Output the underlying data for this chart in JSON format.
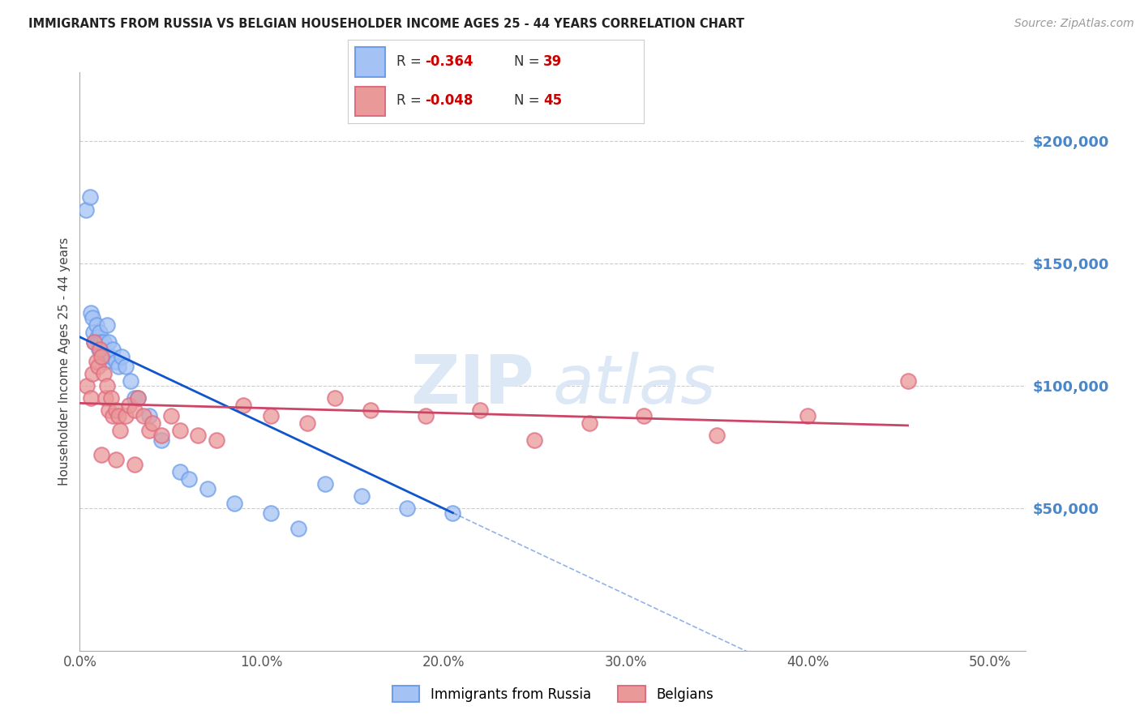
{
  "title": "IMMIGRANTS FROM RUSSIA VS BELGIAN HOUSEHOLDER INCOME AGES 25 - 44 YEARS CORRELATION CHART",
  "source": "Source: ZipAtlas.com",
  "xlabel_vals": [
    0.0,
    10.0,
    20.0,
    30.0,
    40.0,
    50.0
  ],
  "ylabel_vals": [
    200000,
    150000,
    100000,
    50000
  ],
  "xlim": [
    0.0,
    52.0
  ],
  "ylim": [
    -8000,
    228000
  ],
  "blue_scatter_face": "#a4c2f4",
  "blue_scatter_edge": "#6d9eeb",
  "pink_scatter_face": "#ea9999",
  "pink_scatter_edge": "#e06c80",
  "blue_line_color": "#1155cc",
  "pink_line_color": "#cc4466",
  "right_label_color": "#4a86c8",
  "grid_color": "#cccccc",
  "watermark_color": "#dce8f5",
  "russia_x": [
    0.35,
    0.55,
    0.6,
    0.7,
    0.75,
    0.8,
    0.9,
    0.95,
    1.0,
    1.05,
    1.1,
    1.15,
    1.2,
    1.25,
    1.3,
    1.4,
    1.5,
    1.6,
    1.7,
    1.8,
    2.0,
    2.1,
    2.3,
    2.5,
    2.8,
    3.0,
    3.2,
    3.8,
    4.5,
    5.5,
    6.0,
    7.0,
    8.5,
    10.5,
    12.0,
    13.5,
    15.5,
    18.0,
    20.5
  ],
  "russia_y": [
    172000,
    177000,
    130000,
    128000,
    122000,
    118000,
    125000,
    120000,
    118000,
    115000,
    122000,
    118000,
    115000,
    112000,
    118000,
    110000,
    125000,
    118000,
    112000,
    115000,
    110000,
    108000,
    112000,
    108000,
    102000,
    95000,
    95000,
    88000,
    78000,
    65000,
    62000,
    58000,
    52000,
    48000,
    42000,
    60000,
    55000,
    50000,
    48000
  ],
  "belgian_x": [
    0.4,
    0.6,
    0.7,
    0.8,
    0.9,
    1.0,
    1.1,
    1.2,
    1.3,
    1.4,
    1.5,
    1.6,
    1.7,
    1.8,
    2.0,
    2.1,
    2.2,
    2.5,
    2.7,
    3.0,
    3.2,
    3.5,
    3.8,
    4.0,
    4.5,
    5.0,
    5.5,
    6.5,
    7.5,
    9.0,
    10.5,
    12.5,
    14.0,
    16.0,
    19.0,
    22.0,
    25.0,
    28.0,
    31.0,
    35.0,
    40.0,
    45.5,
    1.2,
    2.0,
    3.0
  ],
  "belgian_y": [
    100000,
    95000,
    105000,
    118000,
    110000,
    108000,
    115000,
    112000,
    105000,
    95000,
    100000,
    90000,
    95000,
    88000,
    90000,
    88000,
    82000,
    88000,
    92000,
    90000,
    95000,
    88000,
    82000,
    85000,
    80000,
    88000,
    82000,
    80000,
    78000,
    92000,
    88000,
    85000,
    95000,
    90000,
    88000,
    90000,
    78000,
    85000,
    88000,
    80000,
    88000,
    102000,
    72000,
    70000,
    68000
  ]
}
